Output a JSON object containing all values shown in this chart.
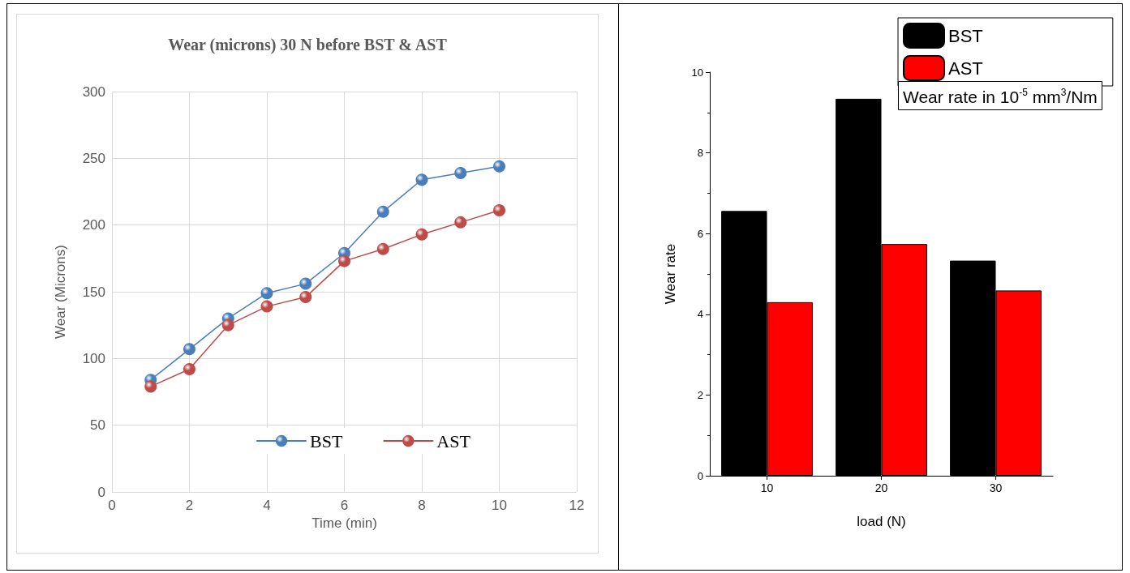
{
  "chart_data": [
    {
      "type": "line",
      "title": "Wear (microns) 30 N before BST & AST",
      "xlabel": "Time (min)",
      "ylabel": "Wear (Microns)",
      "x": [
        1,
        2,
        3,
        4,
        5,
        6,
        7,
        8,
        9,
        10
      ],
      "series": [
        {
          "name": "BST",
          "color": "#4a7ebb",
          "values": [
            84,
            107,
            130,
            149,
            156,
            179,
            210,
            234,
            239,
            244
          ]
        },
        {
          "name": "AST",
          "color": "#be4b48",
          "values": [
            79,
            92,
            125,
            139,
            146,
            173,
            182,
            193,
            202,
            211
          ]
        }
      ],
      "xlim": [
        0,
        12
      ],
      "xticks": [
        0,
        2,
        4,
        6,
        8,
        10,
        12
      ],
      "ylim": [
        0,
        300
      ],
      "yticks": [
        0,
        50,
        100,
        150,
        200,
        250,
        300
      ],
      "grid": true,
      "legend": "bottom",
      "marker": "circle",
      "line_style": "solid"
    },
    {
      "type": "bar",
      "xlabel": "load (N)",
      "ylabel": "Wear rate",
      "legend_title": "Wear rate in 10$^{-5}$ mm$^{3}$/Nm",
      "categories": [
        "10",
        "20",
        "30"
      ],
      "series": [
        {
          "name": "BST",
          "color": "#000000",
          "values": [
            6.56,
            9.34,
            5.33
          ]
        },
        {
          "name": "AST",
          "color": "#ff0000",
          "values": [
            4.3,
            5.74,
            4.59
          ]
        }
      ],
      "ylim": [
        0,
        10
      ],
      "yticks": [
        0,
        2,
        4,
        6,
        8,
        10
      ],
      "grid": false,
      "legend": "top right"
    }
  ]
}
